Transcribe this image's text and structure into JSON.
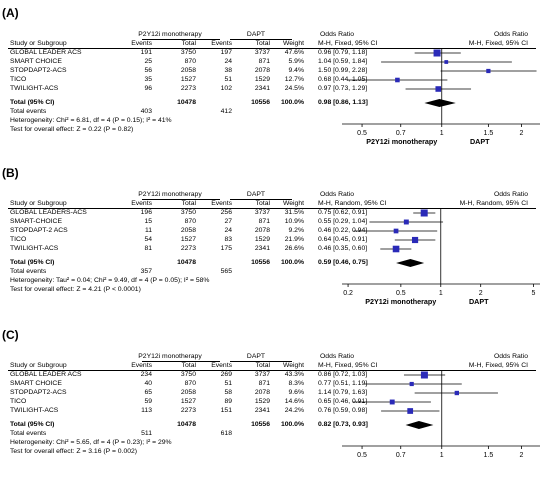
{
  "panels": [
    {
      "label": "(A)",
      "group_header": "P2Y12i monotherapy",
      "ctrl_header": "DAPT",
      "or_header": "Odds Ratio",
      "or_sub": "M-H, Fixed, 95% CI",
      "plot_header": "Odds Ratio",
      "plot_sub": "M-H, Fixed, 95% CI",
      "col_study": "Study or Subgroup",
      "col_events": "Events",
      "col_total": "Total",
      "col_weight": "Weight",
      "rows": [
        {
          "study": "GLOBAL LEADER ACS",
          "e1": "191",
          "n1": "3750",
          "e2": "197",
          "n2": "3737",
          "w": "47.6%",
          "ci": "0.96 [0.79, 1.18]"
        },
        {
          "study": "SMART CHOICE",
          "e1": "25",
          "n1": "870",
          "e2": "24",
          "n2": "871",
          "w": "5.9%",
          "ci": "1.04 [0.59, 1.84]"
        },
        {
          "study": "STOPDAPT2-ACS",
          "e1": "56",
          "n1": "2058",
          "e2": "38",
          "n2": "2078",
          "w": "9.4%",
          "ci": "1.50 [0.99, 2.28]"
        },
        {
          "study": "TICO",
          "e1": "35",
          "n1": "1527",
          "e2": "51",
          "n2": "1529",
          "w": "12.7%",
          "ci": "0.68 [0.44, 1.05]"
        },
        {
          "study": "TWILIGHT-ACS",
          "e1": "96",
          "n1": "2273",
          "e2": "102",
          "n2": "2341",
          "w": "24.5%",
          "ci": "0.97 [0.73, 1.29]"
        }
      ],
      "total_label": "Total (95% CI)",
      "total_n1": "10478",
      "total_n2": "10556",
      "total_w": "100.0%",
      "total_ci": "0.98 [0.86, 1.13]",
      "events_label": "Total events",
      "events1": "403",
      "events2": "412",
      "het": "Heterogeneity: Chi² = 6.81, df = 4 (P = 0.15); I² = 41%",
      "overall": "Test for overall effect: Z = 0.22 (P = 0.82)",
      "axis_left_label": "P2Y12i monotherapy",
      "axis_right_label": "DAPT"
    },
    {
      "label": "(B)",
      "group_header": "P2Y12i monotherapy",
      "ctrl_header": "DAPT",
      "or_header": "Odds Ratio",
      "or_sub": "M-H, Random, 95% CI",
      "plot_header": "Odds Ratio",
      "plot_sub": "M-H, Random, 95% CI",
      "col_study": "Study or Subgroup",
      "col_events": "Events",
      "col_total": "Total",
      "col_weight": "Weight",
      "rows": [
        {
          "study": "GLOBAL LEADERS-ACS",
          "e1": "196",
          "n1": "3750",
          "e2": "256",
          "n2": "3737",
          "w": "31.5%",
          "ci": "0.75 [0.62, 0.91]"
        },
        {
          "study": "SMART-CHOICE",
          "e1": "15",
          "n1": "870",
          "e2": "27",
          "n2": "871",
          "w": "10.9%",
          "ci": "0.55 [0.29, 1.04]"
        },
        {
          "study": "STOPDAPT-2 ACS",
          "e1": "11",
          "n1": "2058",
          "e2": "24",
          "n2": "2078",
          "w": "9.2%",
          "ci": "0.46 [0.22, 0.94]"
        },
        {
          "study": "TICO",
          "e1": "54",
          "n1": "1527",
          "e2": "83",
          "n2": "1529",
          "w": "21.9%",
          "ci": "0.64 [0.45, 0.91]"
        },
        {
          "study": "TWILIGHT-ACS",
          "e1": "81",
          "n1": "2273",
          "e2": "175",
          "n2": "2341",
          "w": "26.6%",
          "ci": "0.46 [0.35, 0.60]"
        }
      ],
      "total_label": "Total (95% CI)",
      "total_n1": "10478",
      "total_n2": "10556",
      "total_w": "100.0%",
      "total_ci": "0.59 [0.46, 0.75]",
      "events_label": "Total events",
      "events1": "357",
      "events2": "565",
      "het": "Heterogeneity: Tau² = 0.04; Chi² = 9.49, df = 4 (P = 0.05); I² = 58%",
      "overall": "Test for overall effect: Z = 4.21 (P < 0.0001)",
      "axis_left_label": "P2Y12i monotherapy",
      "axis_right_label": "DAPT"
    },
    {
      "label": "(C)",
      "group_header": "P2Y12i monotherapy",
      "ctrl_header": "DAPT",
      "or_header": "Odds Ratio",
      "or_sub": "M-H, Fixed, 95% CI",
      "plot_header": "Odds Ratio",
      "plot_sub": "M-H, Fixed, 95% CI",
      "col_study": "Study or Subgroup",
      "col_events": "Events",
      "col_total": "Total",
      "col_weight": "Weight",
      "rows": [
        {
          "study": "GLOBAL LEADER ACS",
          "e1": "234",
          "n1": "3750",
          "e2": "269",
          "n2": "3737",
          "w": "43.3%",
          "ci": "0.86 [0.72, 1.03]"
        },
        {
          "study": "SMART CHOICE",
          "e1": "40",
          "n1": "870",
          "e2": "51",
          "n2": "871",
          "w": "8.3%",
          "ci": "0.77 [0.51, 1.19]"
        },
        {
          "study": "STOPDAPT2-ACS",
          "e1": "65",
          "n1": "2058",
          "e2": "58",
          "n2": "2078",
          "w": "9.6%",
          "ci": "1.14 [0.79, 1.63]"
        },
        {
          "study": "TICO",
          "e1": "59",
          "n1": "1527",
          "e2": "89",
          "n2": "1529",
          "w": "14.6%",
          "ci": "0.65 [0.46, 0.91]"
        },
        {
          "study": "TWILIGHT-ACS",
          "e1": "113",
          "n1": "2273",
          "e2": "151",
          "n2": "2341",
          "w": "24.2%",
          "ci": "0.76 [0.59, 0.98]"
        }
      ],
      "total_label": "Total (95% CI)",
      "total_n1": "10478",
      "total_n2": "10556",
      "total_w": "100.0%",
      "total_ci": "0.82 [0.73, 0.93]",
      "events_label": "Total events",
      "events1": "511",
      "events2": "618",
      "het": "Heterogeneity: Chi² = 5.65, df = 4 (P = 0.23); I² = 29%",
      "overall": "Test for overall effect: Z = 3.16 (P = 0.002)",
      "axis_left_label": "",
      "axis_right_label": ""
    }
  ],
  "colors": {
    "marker": "#2a2ab8",
    "line": "#000000"
  },
  "chart_data": [
    {
      "type": "forest",
      "axis": "log",
      "ticks": [
        "0.5",
        "0.7",
        "1",
        "1.5",
        "2"
      ],
      "tick_values": [
        0.5,
        0.7,
        1,
        1.5,
        2
      ],
      "xlim": [
        0.42,
        2.35
      ],
      "series": [
        {
          "study": "GLOBAL LEADER ACS",
          "or": 0.96,
          "lo": 0.79,
          "hi": 1.18,
          "weight": 47.6
        },
        {
          "study": "SMART CHOICE",
          "or": 1.04,
          "lo": 0.59,
          "hi": 1.84,
          "weight": 5.9
        },
        {
          "study": "STOPDAPT2-ACS",
          "or": 1.5,
          "lo": 0.99,
          "hi": 2.28,
          "weight": 9.4
        },
        {
          "study": "TICO",
          "or": 0.68,
          "lo": 0.44,
          "hi": 1.05,
          "weight": 12.7
        },
        {
          "study": "TWILIGHT-ACS",
          "or": 0.97,
          "lo": 0.73,
          "hi": 1.29,
          "weight": 24.5
        }
      ],
      "pooled": {
        "or": 0.98,
        "lo": 0.86,
        "hi": 1.13
      }
    },
    {
      "type": "forest",
      "axis": "log",
      "ticks": [
        "0.2",
        "0.5",
        "1",
        "2",
        "5"
      ],
      "tick_values": [
        0.2,
        0.5,
        1,
        2,
        5
      ],
      "xlim": [
        0.18,
        5.6
      ],
      "series": [
        {
          "study": "GLOBAL LEADERS-ACS",
          "or": 0.75,
          "lo": 0.62,
          "hi": 0.91,
          "weight": 31.5
        },
        {
          "study": "SMART-CHOICE",
          "or": 0.55,
          "lo": 0.29,
          "hi": 1.04,
          "weight": 10.9
        },
        {
          "study": "STOPDAPT-2 ACS",
          "or": 0.46,
          "lo": 0.22,
          "hi": 0.94,
          "weight": 9.2
        },
        {
          "study": "TICO",
          "or": 0.64,
          "lo": 0.45,
          "hi": 0.91,
          "weight": 21.9
        },
        {
          "study": "TWILIGHT-ACS",
          "or": 0.46,
          "lo": 0.35,
          "hi": 0.6,
          "weight": 26.6
        }
      ],
      "pooled": {
        "or": 0.59,
        "lo": 0.46,
        "hi": 0.75
      }
    },
    {
      "type": "forest",
      "axis": "log",
      "ticks": [
        "0.5",
        "0.7",
        "1",
        "1.5",
        "2"
      ],
      "tick_values": [
        0.5,
        0.7,
        1,
        1.5,
        2
      ],
      "xlim": [
        0.42,
        2.35
      ],
      "series": [
        {
          "study": "GLOBAL LEADER ACS",
          "or": 0.86,
          "lo": 0.72,
          "hi": 1.03,
          "weight": 43.3
        },
        {
          "study": "SMART CHOICE",
          "or": 0.77,
          "lo": 0.51,
          "hi": 1.19,
          "weight": 8.3
        },
        {
          "study": "STOPDAPT2-ACS",
          "or": 1.14,
          "lo": 0.79,
          "hi": 1.63,
          "weight": 9.6
        },
        {
          "study": "TICO",
          "or": 0.65,
          "lo": 0.46,
          "hi": 0.91,
          "weight": 14.6
        },
        {
          "study": "TWILIGHT-ACS",
          "or": 0.76,
          "lo": 0.59,
          "hi": 0.98,
          "weight": 24.2
        }
      ],
      "pooled": {
        "or": 0.82,
        "lo": 0.73,
        "hi": 0.93
      }
    }
  ]
}
